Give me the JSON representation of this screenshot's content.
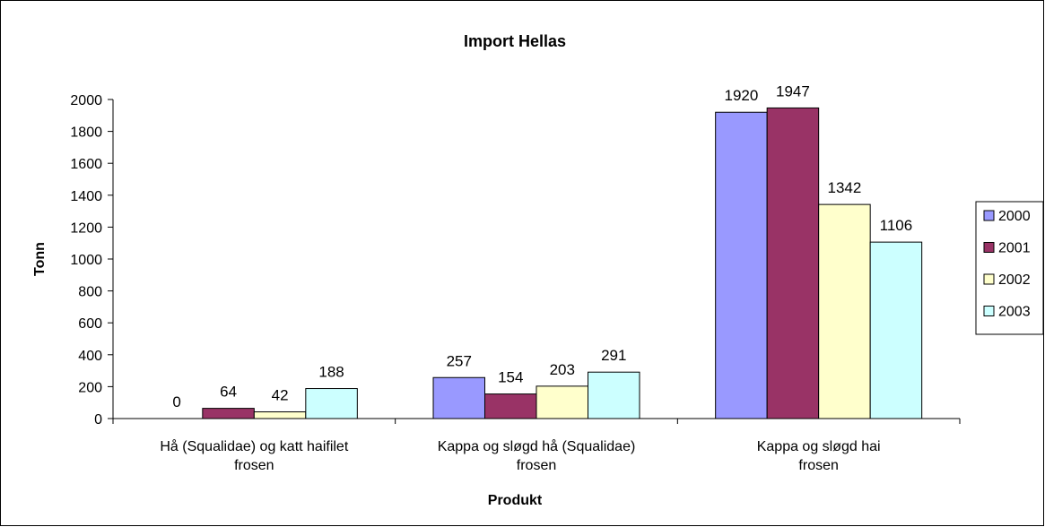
{
  "chart_data": {
    "type": "bar",
    "title": "Import Hellas",
    "xlabel": "Produkt",
    "ylabel": "Tonn",
    "ylim": [
      0,
      2000
    ],
    "yticks": [
      0,
      200,
      400,
      600,
      800,
      1000,
      1200,
      1400,
      1600,
      1800,
      2000
    ],
    "categories": [
      [
        "Hå (Squalidae) og katt haifilet",
        "frosen"
      ],
      [
        "Kappa og sløgd hå (Squalidae)",
        "frosen"
      ],
      [
        "Kappa og sløgd hai",
        "frosen"
      ]
    ],
    "series": [
      {
        "name": "2000",
        "color": "#9999FF",
        "values": [
          0,
          257,
          1920
        ]
      },
      {
        "name": "2001",
        "color": "#993366",
        "values": [
          64,
          154,
          1947
        ]
      },
      {
        "name": "2002",
        "color": "#FFFFCC",
        "values": [
          42,
          203,
          1342
        ]
      },
      {
        "name": "2003",
        "color": "#CCFFFF",
        "values": [
          188,
          291,
          1106
        ]
      }
    ],
    "grid": false,
    "legend": "right"
  }
}
